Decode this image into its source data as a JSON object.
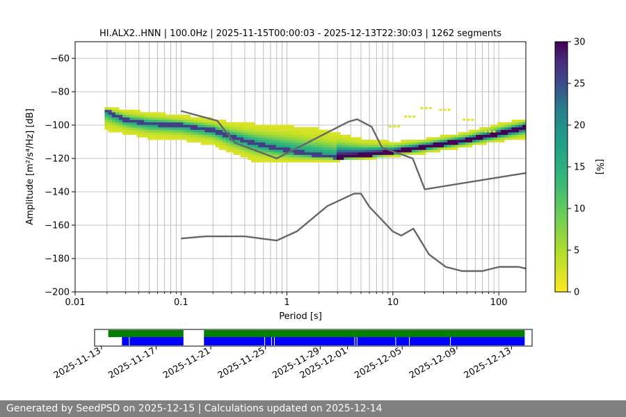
{
  "footer": {
    "generated": "Generated by SeedPSD on 2025-12-15",
    "separator": " | ",
    "updated": "Calculations updated on 2025-12-14"
  },
  "chart_data": {
    "type": "heatmap",
    "title": "HI.ALX2..HNN | 100.0Hz | 2025-11-15T00:00:03 - 2025-12-13T22:30:03 | 1262 segments",
    "xlabel": "Period [s]",
    "ylabel": "Amplitude [m²/s⁴/Hz] [dB]",
    "x_scale": "log",
    "xlim": [
      0.01,
      180
    ],
    "ylim": [
      -200,
      -50
    ],
    "x_ticks": [
      "0.01",
      "0.1",
      "1",
      "10",
      "100"
    ],
    "y_ticks": [
      "−60",
      "−80",
      "−100",
      "−120",
      "−140",
      "−160",
      "−180",
      "−200"
    ],
    "y_tick_values": [
      -60,
      -80,
      -100,
      -120,
      -140,
      -160,
      -180,
      -200
    ],
    "grid": true,
    "colorbar": {
      "label": "[%]",
      "range": [
        0,
        30
      ],
      "ticks": [
        "0",
        "5",
        "10",
        "15",
        "20",
        "25",
        "30"
      ],
      "tick_values": [
        0,
        5,
        10,
        15,
        20,
        25,
        30
      ],
      "colormap": "viridis_r"
    },
    "mode_line": [
      [
        0.019,
        -91
      ],
      [
        0.03,
        -97
      ],
      [
        0.05,
        -99
      ],
      [
        0.1,
        -100
      ],
      [
        0.2,
        -103
      ],
      [
        0.3,
        -107
      ],
      [
        0.5,
        -111
      ],
      [
        1,
        -115
      ],
      [
        2,
        -118
      ],
      [
        3,
        -119
      ],
      [
        5,
        -118
      ],
      [
        10,
        -116
      ],
      [
        20,
        -113
      ],
      [
        50,
        -109
      ],
      [
        100,
        -105
      ],
      [
        180,
        -101
      ]
    ],
    "spread_upper": [
      [
        0.019,
        -89
      ],
      [
        0.05,
        -92
      ],
      [
        0.1,
        -94
      ],
      [
        0.2,
        -96
      ],
      [
        0.3,
        -98
      ],
      [
        0.5,
        -99
      ],
      [
        1,
        -100
      ],
      [
        2,
        -102
      ],
      [
        5,
        -108
      ],
      [
        10,
        -110
      ],
      [
        20,
        -108
      ],
      [
        50,
        -104
      ],
      [
        100,
        -99
      ],
      [
        180,
        -96
      ]
    ],
    "spread_lower": [
      [
        0.019,
        -103
      ],
      [
        0.05,
        -108
      ],
      [
        0.1,
        -109
      ],
      [
        0.2,
        -112
      ],
      [
        0.3,
        -117
      ],
      [
        0.5,
        -122
      ],
      [
        1,
        -123
      ],
      [
        2,
        -122
      ],
      [
        5,
        -121
      ],
      [
        10,
        -119
      ],
      [
        20,
        -117
      ],
      [
        50,
        -113
      ],
      [
        100,
        -110
      ],
      [
        180,
        -108
      ]
    ],
    "microseism_band": [
      [
        8,
        -110
      ],
      [
        10,
        -101
      ],
      [
        14,
        -95
      ],
      [
        20,
        -90
      ],
      [
        30,
        -91
      ],
      [
        50,
        -97
      ],
      [
        80,
        -104
      ]
    ],
    "noise_model_high": [
      [
        0.1,
        -91.5
      ],
      [
        0.22,
        -97.4
      ],
      [
        0.32,
        -110.5
      ],
      [
        0.8,
        -120
      ],
      [
        3.8,
        -98
      ],
      [
        4.6,
        -96.5
      ],
      [
        6.3,
        -101
      ],
      [
        7.9,
        -113.5
      ],
      [
        15.4,
        -120
      ],
      [
        20,
        -138.5
      ],
      [
        180,
        -128.7
      ]
    ],
    "noise_model_low": [
      [
        0.1,
        -168
      ],
      [
        0.17,
        -166.7
      ],
      [
        0.4,
        -166.7
      ],
      [
        0.8,
        -169.2
      ],
      [
        1.24,
        -163.7
      ],
      [
        2.4,
        -148.6
      ],
      [
        4.3,
        -141.1
      ],
      [
        5,
        -141.1
      ],
      [
        6,
        -149
      ],
      [
        10,
        -163.8
      ],
      [
        12,
        -166.2
      ],
      [
        15.6,
        -162.1
      ],
      [
        21.9,
        -177.5
      ],
      [
        31.6,
        -185
      ],
      [
        45,
        -187.5
      ],
      [
        70,
        -187.5
      ],
      [
        101,
        -185
      ],
      [
        154,
        -185
      ],
      [
        180,
        -186
      ]
    ],
    "timeline": {
      "date_ticks": [
        "2025-11-13",
        "2025-11-17",
        "2025-11-21",
        "2025-11-25",
        "2025-11-29",
        "2025-12-01",
        "2025-12-05",
        "2025-12-09",
        "2025-12-13"
      ],
      "date_tick_values": [
        "2025-11-13",
        "2025-11-17",
        "2025-11-21",
        "2025-11-25",
        "2025-11-29",
        "2025-12-01",
        "2025-12-05",
        "2025-12-09",
        "2025-12-13"
      ],
      "start": "2025-11-12T12:00",
      "end": "2025-12-14T12:00",
      "data_available": [
        [
          "2025-11-13T12:00",
          "2025-11-19T00:00"
        ],
        [
          "2025-11-20T12:00",
          "2025-12-13T23:00"
        ]
      ],
      "segments_used": [
        [
          "2025-11-14T12:00",
          "2025-11-19T00:00"
        ],
        [
          "2025-11-20T12:00",
          "2025-12-13T23:00"
        ]
      ],
      "gaps": [
        "2025-11-15T00:20",
        "2025-11-24T22:00",
        "2025-11-25T10:00",
        "2025-11-25T15:00",
        "2025-12-01T12:00",
        "2025-12-01T16:00",
        "2025-12-04T12:00",
        "2025-12-05T12:00",
        "2025-12-08T12:00"
      ],
      "available_color": "#008000",
      "used_color": "#0000ff"
    },
    "line_color": "#666666"
  }
}
